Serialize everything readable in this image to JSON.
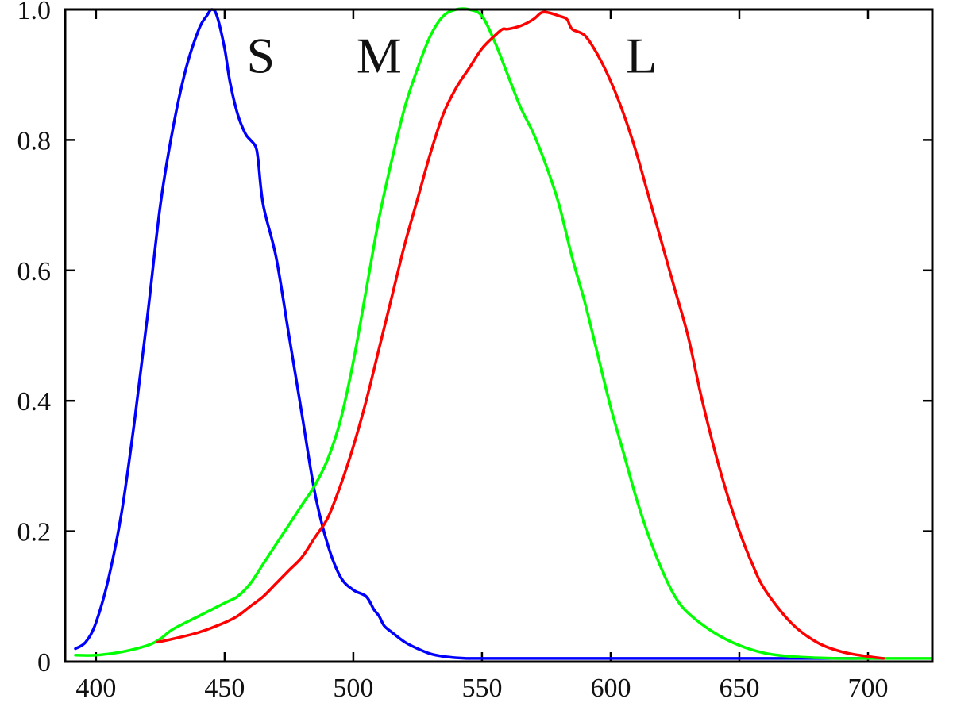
{
  "chart_data": {
    "type": "line",
    "title": "",
    "xlabel": "",
    "ylabel": "",
    "xlim": [
      388,
      725
    ],
    "ylim": [
      0,
      1.0
    ],
    "grid": false,
    "x_ticks": [
      {
        "value": 400,
        "label": "400"
      },
      {
        "value": 450,
        "label": "450"
      },
      {
        "value": 500,
        "label": "500"
      },
      {
        "value": 550,
        "label": "550"
      },
      {
        "value": 600,
        "label": "600"
      },
      {
        "value": 650,
        "label": "650"
      },
      {
        "value": 700,
        "label": "700"
      }
    ],
    "y_ticks": [
      {
        "value": 0,
        "label": "0"
      },
      {
        "value": 0.2,
        "label": "0.2"
      },
      {
        "value": 0.4,
        "label": "0.4"
      },
      {
        "value": 0.6,
        "label": "0.6"
      },
      {
        "value": 0.8,
        "label": "0.8"
      },
      {
        "value": 1.0,
        "label": "1.0"
      }
    ],
    "series": [
      {
        "name": "S",
        "color": "#0000ff",
        "x": [
          392,
          396,
          400,
          405,
          410,
          415,
          420,
          425,
          430,
          435,
          440,
          443,
          445,
          447,
          450,
          452,
          455,
          458,
          460,
          462,
          463,
          465,
          470,
          475,
          480,
          485,
          490,
          495,
          500,
          505,
          508,
          510,
          512,
          515,
          520,
          525,
          530,
          535,
          540,
          545,
          550,
          600,
          650,
          700,
          705
        ],
        "y": [
          0.02,
          0.03,
          0.06,
          0.13,
          0.23,
          0.37,
          0.53,
          0.7,
          0.82,
          0.91,
          0.97,
          0.99,
          1.0,
          0.99,
          0.94,
          0.89,
          0.84,
          0.81,
          0.8,
          0.79,
          0.77,
          0.7,
          0.62,
          0.5,
          0.38,
          0.26,
          0.18,
          0.13,
          0.11,
          0.1,
          0.08,
          0.07,
          0.055,
          0.045,
          0.03,
          0.02,
          0.012,
          0.008,
          0.006,
          0.005,
          0.005,
          0.005,
          0.005,
          0.005,
          0.005
        ]
      },
      {
        "name": "M",
        "color": "#00ff00",
        "x": [
          392,
          400,
          410,
          420,
          425,
          430,
          440,
          450,
          455,
          460,
          465,
          470,
          475,
          480,
          485,
          490,
          495,
          500,
          505,
          510,
          515,
          520,
          525,
          530,
          535,
          540,
          545,
          550,
          555,
          560,
          565,
          570,
          575,
          580,
          585,
          590,
          595,
          600,
          605,
          610,
          615,
          620,
          625,
          630,
          640,
          650,
          660,
          670,
          680,
          690,
          700,
          710,
          725
        ],
        "y": [
          0.01,
          0.01,
          0.015,
          0.025,
          0.035,
          0.05,
          0.07,
          0.09,
          0.1,
          0.12,
          0.15,
          0.18,
          0.21,
          0.24,
          0.27,
          0.31,
          0.37,
          0.46,
          0.57,
          0.68,
          0.77,
          0.85,
          0.91,
          0.96,
          0.99,
          1.0,
          1.0,
          0.99,
          0.95,
          0.9,
          0.85,
          0.81,
          0.76,
          0.7,
          0.62,
          0.55,
          0.47,
          0.39,
          0.32,
          0.25,
          0.19,
          0.14,
          0.1,
          0.075,
          0.045,
          0.025,
          0.013,
          0.008,
          0.006,
          0.005,
          0.005,
          0.005,
          0.005
        ]
      },
      {
        "name": "L",
        "color": "#ff0000",
        "x": [
          424,
          430,
          440,
          450,
          455,
          460,
          465,
          470,
          475,
          480,
          485,
          490,
          495,
          500,
          505,
          510,
          515,
          520,
          525,
          530,
          535,
          540,
          545,
          550,
          555,
          558,
          560,
          565,
          570,
          573,
          576,
          580,
          583,
          585,
          590,
          595,
          600,
          605,
          610,
          615,
          620,
          625,
          630,
          635,
          640,
          645,
          650,
          655,
          660,
          670,
          680,
          690,
          700,
          706
        ],
        "y": [
          0.03,
          0.035,
          0.045,
          0.06,
          0.07,
          0.085,
          0.1,
          0.12,
          0.14,
          0.16,
          0.19,
          0.22,
          0.27,
          0.33,
          0.4,
          0.48,
          0.56,
          0.64,
          0.71,
          0.78,
          0.84,
          0.88,
          0.91,
          0.94,
          0.96,
          0.97,
          0.97,
          0.975,
          0.985,
          0.995,
          0.995,
          0.99,
          0.985,
          0.97,
          0.96,
          0.93,
          0.89,
          0.84,
          0.78,
          0.71,
          0.64,
          0.57,
          0.5,
          0.41,
          0.33,
          0.26,
          0.2,
          0.15,
          0.11,
          0.06,
          0.03,
          0.015,
          0.008,
          0.005
        ]
      }
    ],
    "annotations": [
      {
        "text": "S",
        "x": 464,
        "y": 0.93
      },
      {
        "text": "M",
        "x": 510,
        "y": 0.93
      },
      {
        "text": "L",
        "x": 612,
        "y": 0.93
      }
    ]
  }
}
